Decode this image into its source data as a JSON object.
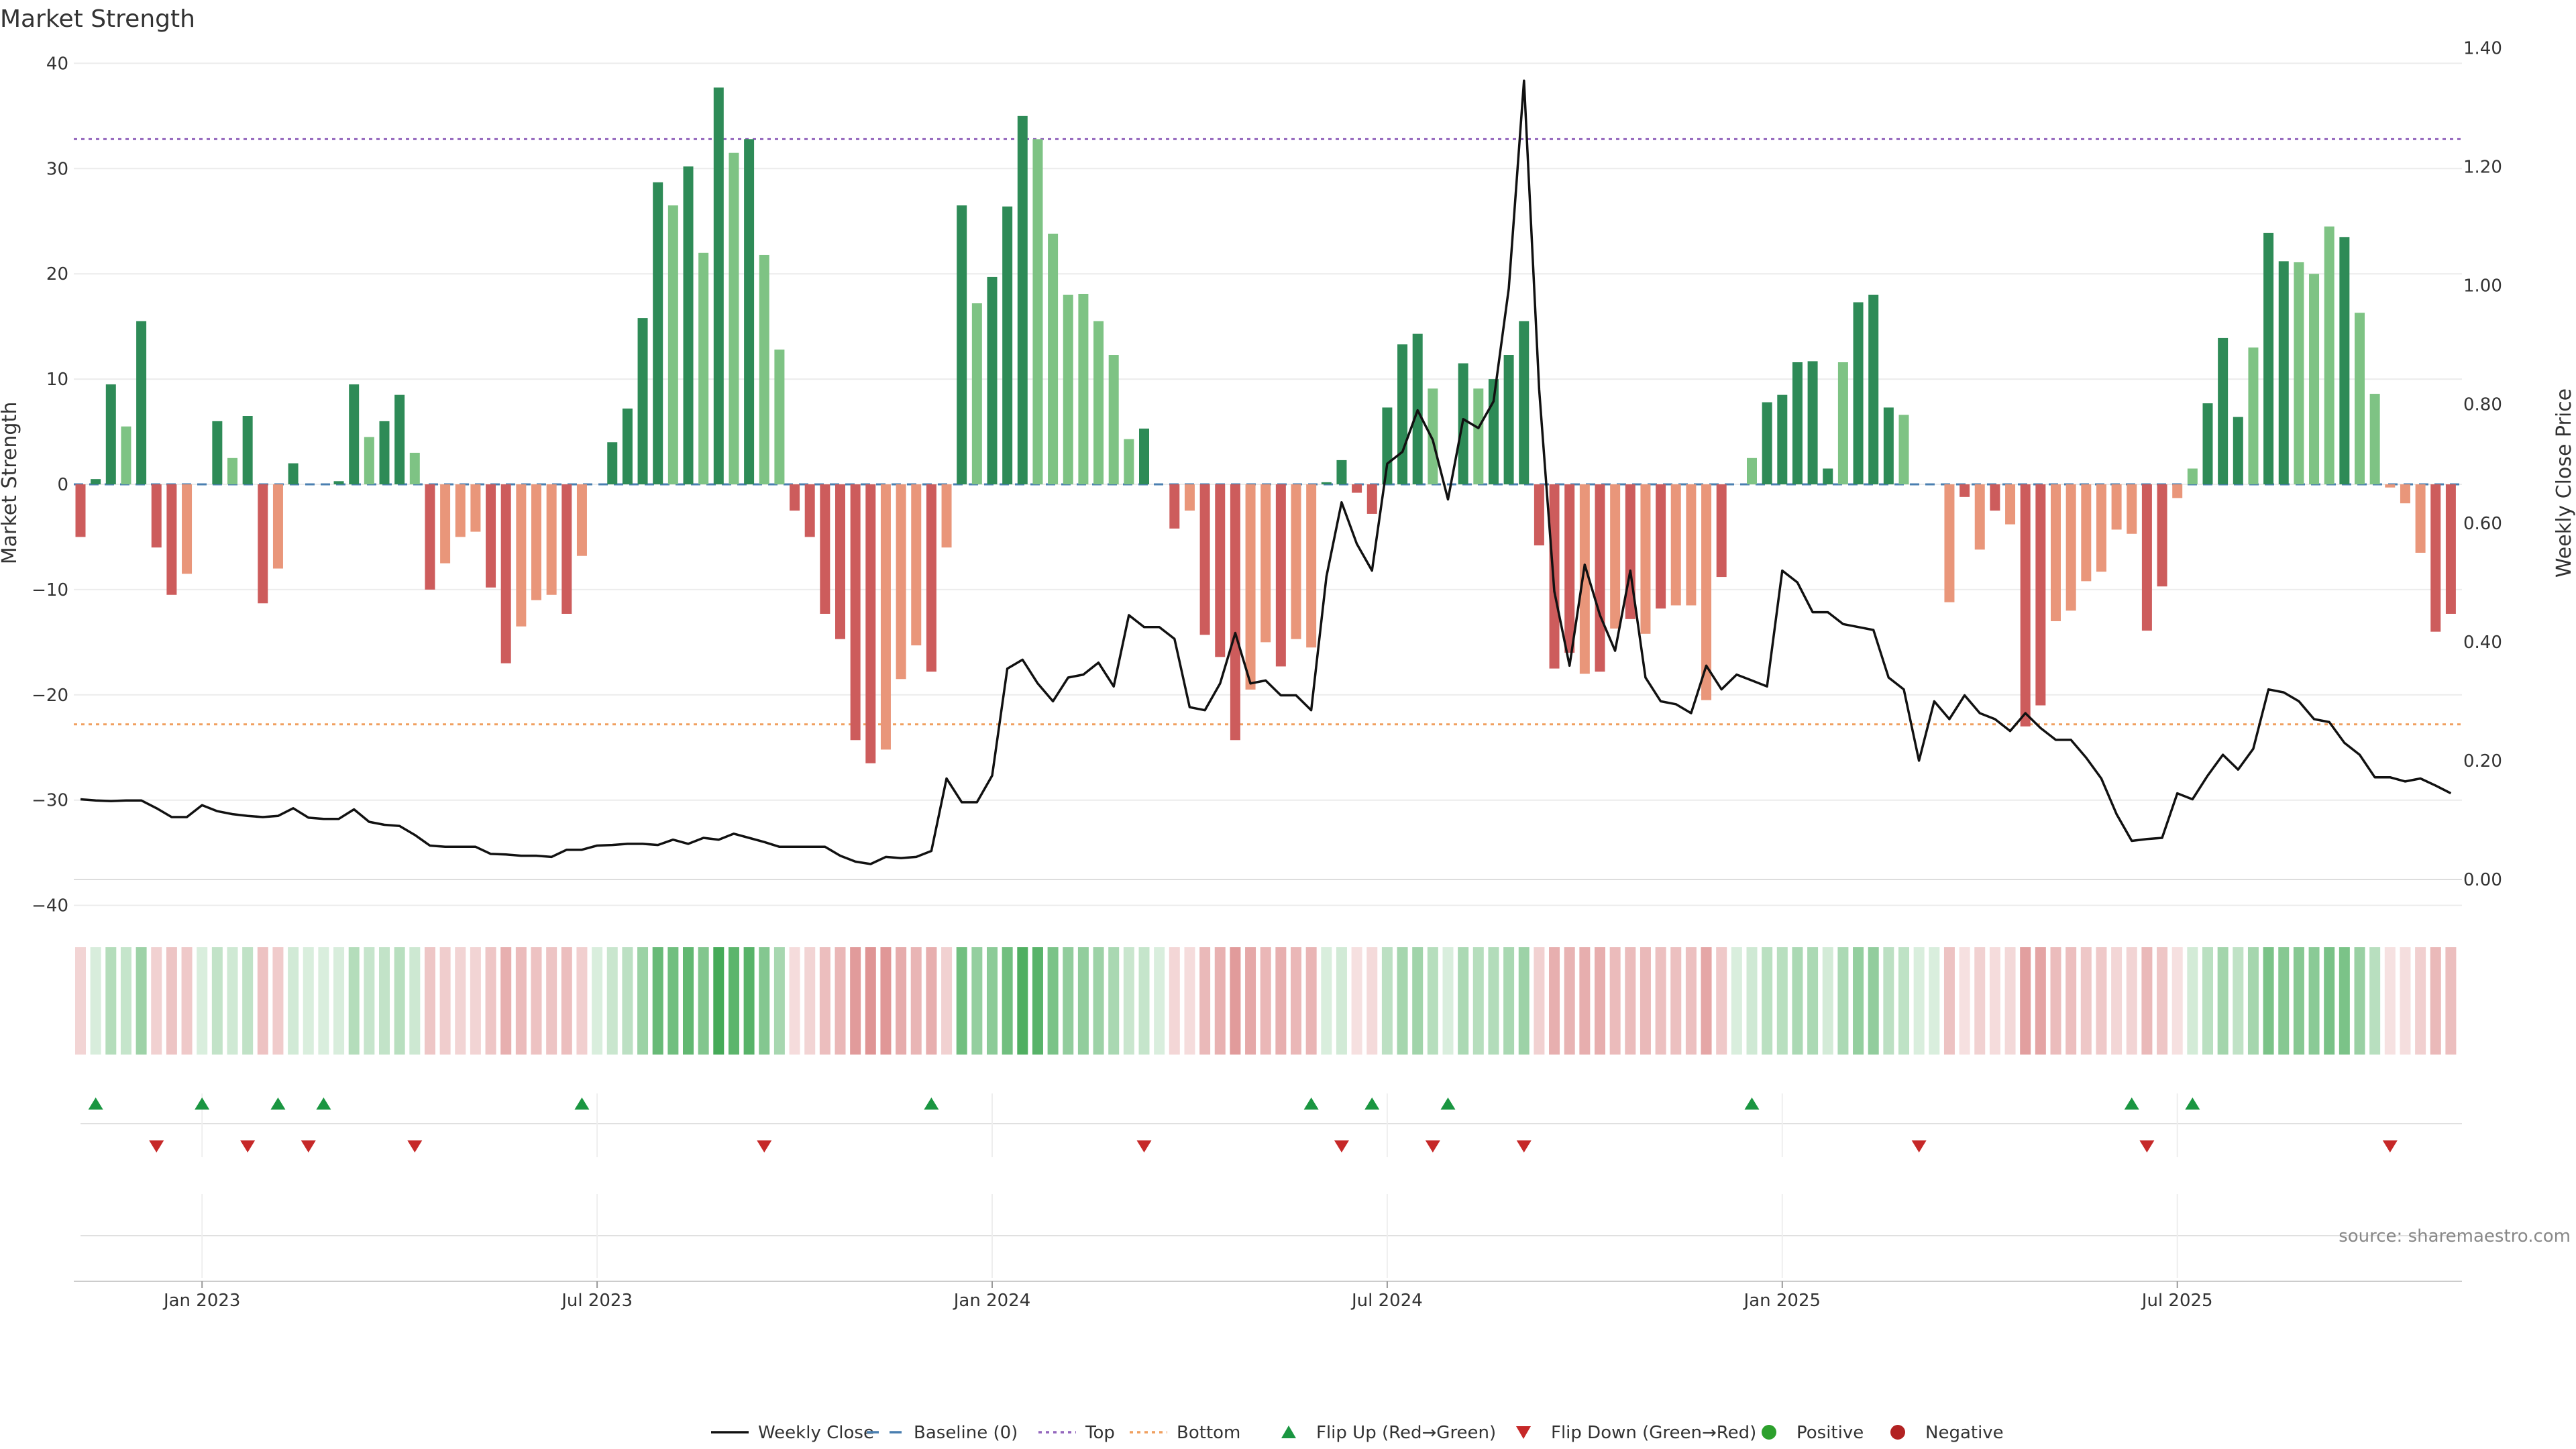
{
  "chart_data": {
    "type": "bar",
    "title": "Market Strength",
    "ylabel_left": "Market Strength",
    "ylabel_right": "Weekly Close Price",
    "ylim_left": [
      -40,
      40
    ],
    "ylim_right": [
      0,
      1.4
    ],
    "yticks_left": [
      "40",
      "30",
      "20",
      "10",
      "0",
      "−10",
      "−20",
      "−30",
      "−40"
    ],
    "yticks_right": [
      "1.40",
      "1.20",
      "1.00",
      "0.80",
      "0.60",
      "0.40",
      "0.20",
      "0.00"
    ],
    "x_ticks": [
      {
        "label": "Jan 2023",
        "week": 8
      },
      {
        "label": "Jul 2023",
        "week": 34
      },
      {
        "label": "Jan 2024",
        "week": 60
      },
      {
        "label": "Jul 2024",
        "week": 86
      },
      {
        "label": "Jan 2025",
        "week": 112
      },
      {
        "label": "Jul 2025",
        "week": 138
      }
    ],
    "top_line": 32.8,
    "bottom_line": -22.8,
    "strength": [
      -5,
      0.5,
      9.5,
      5.5,
      15.5,
      -6,
      -10.5,
      -8.5,
      0,
      6,
      2.5,
      6.5,
      -11.3,
      -8,
      2,
      0,
      0,
      0.3,
      9.5,
      4.5,
      6,
      8.5,
      3,
      -10,
      -7.5,
      -5,
      -4.5,
      -9.8,
      -17,
      -13.5,
      -11,
      -10.5,
      -12.3,
      -6.8,
      0,
      4,
      7.2,
      15.8,
      28.7,
      26.5,
      30.2,
      22,
      37.7,
      31.5,
      32.8,
      21.8,
      12.8,
      -2.5,
      -5,
      -12.3,
      -14.7,
      -24.3,
      -26.5,
      -25.2,
      -18.5,
      -15.3,
      -17.8,
      -6,
      26.5,
      17.2,
      19.7,
      26.4,
      35,
      32.8,
      23.8,
      18,
      18.1,
      15.5,
      12.3,
      4.3,
      5.3,
      0,
      -4.2,
      -2.5,
      -14.3,
      -16.4,
      -24.3,
      -19.5,
      -15,
      -17.3,
      -14.7,
      -15.5,
      0.2,
      2.3,
      -0.8,
      -2.8,
      7.3,
      13.3,
      14.3,
      9.1,
      0,
      11.5,
      9.1,
      10,
      12.3,
      15.5,
      -5.8,
      -17.5,
      -16,
      -18,
      -17.8,
      -13.7,
      -12.8,
      -14.2,
      -11.8,
      -11.5,
      -11.5,
      -20.5,
      -8.8,
      0,
      2.5,
      7.8,
      8.5,
      11.6,
      11.7,
      1.5,
      11.6,
      17.3,
      18,
      7.3,
      6.6,
      0,
      0,
      -11.2,
      -1.2,
      -6.2,
      -2.5,
      -3.8,
      -23,
      -21,
      -13,
      -12,
      -9.2,
      -8.3,
      -4.3,
      -4.7,
      -13.9,
      -9.7,
      -1.3,
      1.5,
      7.7,
      13.9,
      6.4,
      13,
      23.9,
      21.2,
      21.1,
      20,
      24.5,
      23.5,
      16.3,
      8.6,
      -0.3,
      -1.8,
      -6.5,
      -14,
      -12.3
    ],
    "bar_shade": [
      "d",
      "d",
      "d",
      "l",
      "d",
      "d",
      "d",
      "l",
      "l",
      "d",
      "l",
      "d",
      "d",
      "l",
      "d",
      "l",
      "l",
      "d",
      "d",
      "l",
      "d",
      "d",
      "l",
      "d",
      "l",
      "l",
      "l",
      "d",
      "d",
      "l",
      "l",
      "l",
      "d",
      "l",
      "l",
      "d",
      "d",
      "d",
      "d",
      "l",
      "d",
      "l",
      "d",
      "l",
      "d",
      "l",
      "l",
      "d",
      "d",
      "d",
      "d",
      "d",
      "d",
      "l",
      "l",
      "l",
      "d",
      "l",
      "d",
      "l",
      "d",
      "d",
      "d",
      "l",
      "l",
      "l",
      "l",
      "l",
      "l",
      "l",
      "d",
      "l",
      "d",
      "l",
      "d",
      "d",
      "d",
      "l",
      "l",
      "d",
      "l",
      "l",
      "d",
      "d",
      "d",
      "d",
      "d",
      "d",
      "d",
      "l",
      "l",
      "d",
      "l",
      "d",
      "d",
      "d",
      "d",
      "d",
      "d",
      "l",
      "d",
      "l",
      "d",
      "l",
      "d",
      "l",
      "l",
      "l",
      "d",
      "l",
      "l",
      "d",
      "d",
      "d",
      "d",
      "d",
      "l",
      "d",
      "d",
      "d",
      "l",
      "l",
      "l",
      "l",
      "d",
      "l",
      "d",
      "l",
      "d",
      "d",
      "l",
      "l",
      "l",
      "l",
      "l",
      "l",
      "d",
      "d",
      "l",
      "l",
      "d",
      "d",
      "d",
      "l",
      "d",
      "d",
      "l",
      "l",
      "l",
      "d",
      "l",
      "l",
      "l",
      "l",
      "l",
      "d",
      "d",
      "l"
    ],
    "close": [
      0.135,
      0.133,
      0.132,
      0.133,
      0.133,
      0.12,
      0.105,
      0.105,
      0.125,
      0.115,
      0.11,
      0.107,
      0.105,
      0.107,
      0.12,
      0.104,
      0.102,
      0.102,
      0.118,
      0.097,
      0.092,
      0.09,
      0.075,
      0.057,
      0.055,
      0.055,
      0.055,
      0.043,
      0.042,
      0.04,
      0.04,
      0.038,
      0.05,
      0.05,
      0.057,
      0.058,
      0.06,
      0.06,
      0.058,
      0.067,
      0.06,
      0.07,
      0.067,
      0.077,
      0.07,
      0.063,
      0.055,
      0.055,
      0.055,
      0.055,
      0.04,
      0.03,
      0.026,
      0.038,
      0.036,
      0.038,
      0.048,
      0.17,
      0.13,
      0.13,
      0.175,
      0.355,
      0.37,
      0.33,
      0.3,
      0.34,
      0.345,
      0.365,
      0.325,
      0.445,
      0.425,
      0.425,
      0.405,
      0.29,
      0.285,
      0.33,
      0.415,
      0.33,
      0.335,
      0.31,
      0.31,
      0.285,
      0.51,
      0.635,
      0.565,
      0.52,
      0.7,
      0.72,
      0.79,
      0.74,
      0.64,
      0.775,
      0.76,
      0.805,
      0.995,
      1.345,
      0.825,
      0.485,
      0.36,
      0.53,
      0.445,
      0.385,
      0.52,
      0.34,
      0.3,
      0.295,
      0.28,
      0.36,
      0.32,
      0.345,
      0.335,
      0.325,
      0.52,
      0.5,
      0.45,
      0.45,
      0.43,
      0.425,
      0.42,
      0.34,
      0.32,
      0.2,
      0.3,
      0.27,
      0.31,
      0.28,
      0.27,
      0.25,
      0.28,
      0.255,
      0.235,
      0.235,
      0.205,
      0.17,
      0.11,
      0.065,
      0.068,
      0.07,
      0.145,
      0.135,
      0.175,
      0.21,
      0.185,
      0.22,
      0.32,
      0.315,
      0.3,
      0.27,
      0.265,
      0.23,
      0.21,
      0.172,
      0.172,
      0.165,
      0.17,
      0.158,
      0.145
    ],
    "flip_up_weeks": [
      1,
      8,
      13,
      16,
      33,
      56,
      81,
      85,
      90,
      110,
      135,
      139
    ],
    "flip_down_weeks": [
      5,
      11,
      15,
      22,
      45,
      70,
      83,
      89,
      95,
      121,
      136,
      152
    ],
    "colors": {
      "pos_dark": "#2e8b57",
      "pos_light": "#7ec384",
      "neg_dark": "#cd5c5c",
      "neg_light": "#e9967a",
      "close_line": "#111111",
      "baseline": "#4a7fb0",
      "top_line": "#9467bd",
      "bottom_line": "#f0a060",
      "flip_up": "#1a9641",
      "flip_down": "#c62828",
      "positive_dot": "#2ca02c",
      "negative_dot": "#b22222"
    },
    "legend": [
      {
        "key": "close",
        "label": "Weekly Close"
      },
      {
        "key": "baseline",
        "label": "Baseline (0)"
      },
      {
        "key": "top",
        "label": "Top"
      },
      {
        "key": "bottom",
        "label": "Bottom"
      },
      {
        "key": "flip_up",
        "label": "Flip Up (Red→Green)"
      },
      {
        "key": "flip_down",
        "label": "Flip Down (Green→Red)"
      },
      {
        "key": "positive",
        "label": "Positive"
      },
      {
        "key": "negative",
        "label": "Negative"
      }
    ],
    "source": "source: sharemaestro.com"
  }
}
